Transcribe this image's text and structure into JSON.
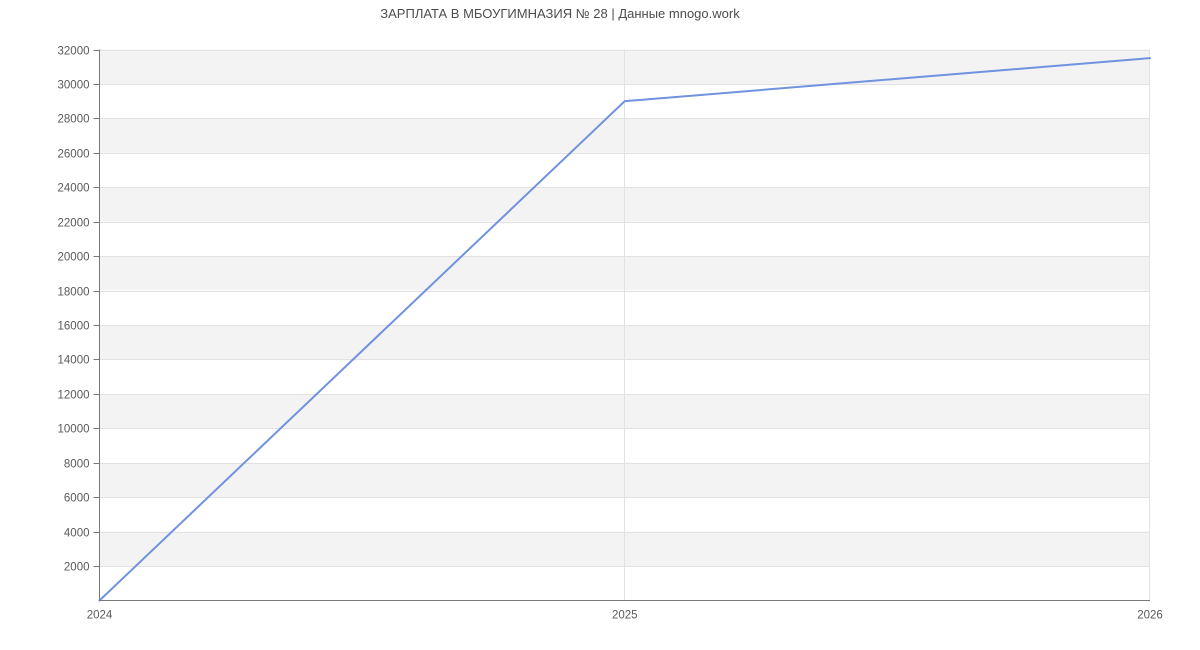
{
  "chart_data": {
    "type": "line",
    "title": "ЗАРПЛАТА В МБОУГИМНАЗИЯ № 28 | Данные mnogo.work",
    "x_labels": [
      "2024",
      "2025",
      "2026"
    ],
    "series": [
      {
        "values": [
          0,
          29000,
          31500
        ]
      }
    ],
    "ylim": [
      0,
      32000
    ],
    "ytick_step": 2000,
    "ytick_labels": [
      "2000",
      "4000",
      "6000",
      "8000",
      "10000",
      "12000",
      "14000",
      "16000",
      "18000",
      "20000",
      "22000",
      "24000",
      "26000",
      "28000",
      "30000",
      "32000"
    ],
    "grid": true,
    "banded_background": true,
    "legend_position": "none",
    "colors": {
      "line": "#6f93de",
      "band": "#f3f3f3",
      "band_alt": "#ffffff",
      "gridline": "#e2e2e2",
      "axis": "#787878",
      "tick_label": "#5a5a5a",
      "title": "#4d4d4d",
      "background": "#ffffff"
    }
  }
}
